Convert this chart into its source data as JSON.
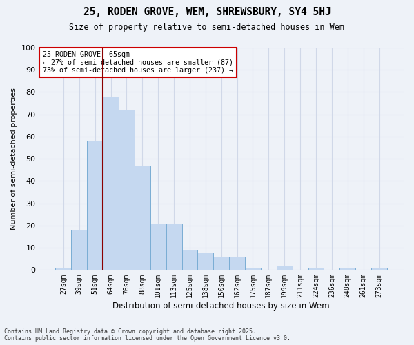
{
  "title_line1": "25, RODEN GROVE, WEM, SHREWSBURY, SY4 5HJ",
  "title_line2": "Size of property relative to semi-detached houses in Wem",
  "xlabel": "Distribution of semi-detached houses by size in Wem",
  "ylabel": "Number of semi-detached properties",
  "categories": [
    "27sqm",
    "39sqm",
    "51sqm",
    "64sqm",
    "76sqm",
    "88sqm",
    "101sqm",
    "113sqm",
    "125sqm",
    "138sqm",
    "150sqm",
    "162sqm",
    "175sqm",
    "187sqm",
    "199sqm",
    "211sqm",
    "224sqm",
    "236sqm",
    "248sqm",
    "261sqm",
    "273sqm"
  ],
  "values": [
    1,
    18,
    58,
    78,
    72,
    47,
    21,
    21,
    9,
    8,
    6,
    6,
    1,
    0,
    2,
    0,
    1,
    0,
    1,
    0,
    1
  ],
  "bar_color": "#c5d8f0",
  "bar_edge_color": "#7aadd4",
  "vline_x_index": 3,
  "vline_color": "#8b0000",
  "annotation_title": "25 RODEN GROVE: 65sqm",
  "annotation_line1": "← 27% of semi-detached houses are smaller (87)",
  "annotation_line2": "73% of semi-detached houses are larger (237) →",
  "annotation_box_color": "#ffffff",
  "annotation_box_edge": "#cc0000",
  "bg_color": "#eef2f8",
  "grid_color": "#d0d8e8",
  "ylim": [
    0,
    100
  ],
  "yticks": [
    0,
    10,
    20,
    30,
    40,
    50,
    60,
    70,
    80,
    90,
    100
  ],
  "footer_line1": "Contains HM Land Registry data © Crown copyright and database right 2025.",
  "footer_line2": "Contains public sector information licensed under the Open Government Licence v3.0."
}
